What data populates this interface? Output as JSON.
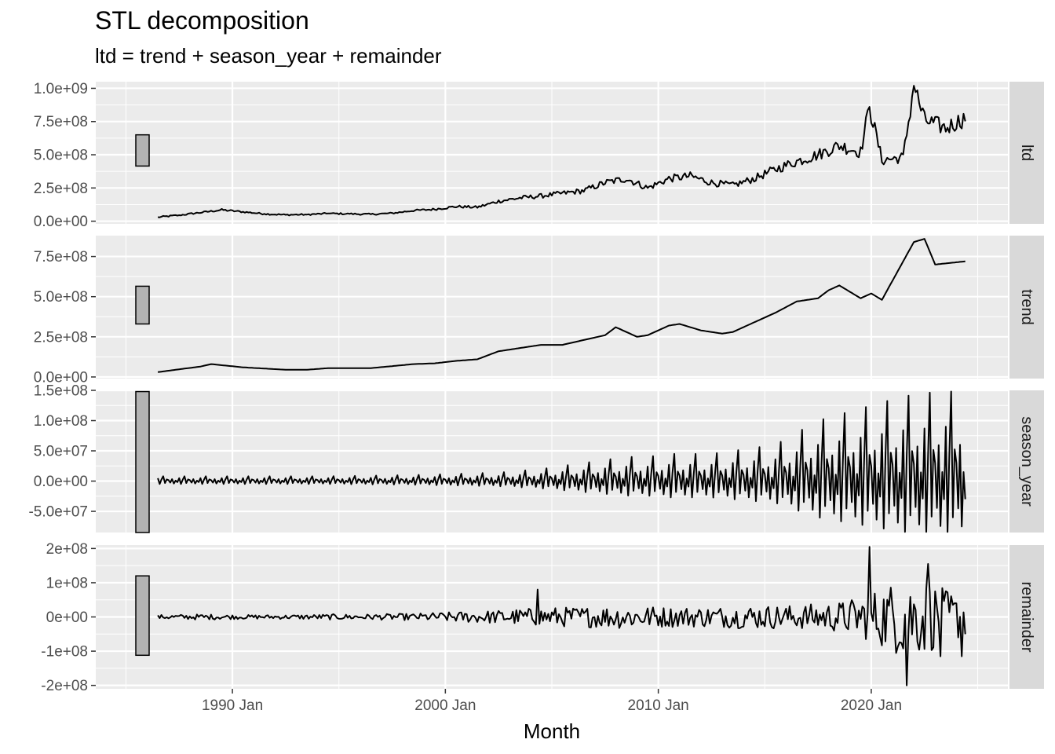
{
  "chart_data": {
    "type": "line",
    "title": "STL decomposition",
    "subtitle": "ltd = trend + season_year + remainder",
    "xlabel": "Month",
    "x_range": [
      "1983-08",
      "2026-06"
    ],
    "x_ticks": [
      {
        "value": "1990-01",
        "label": "1990 Jan"
      },
      {
        "value": "2000-01",
        "label": "2000 Jan"
      },
      {
        "value": "2010-01",
        "label": "2010 Jan"
      },
      {
        "value": "2020-01",
        "label": "2020 Jan"
      }
    ],
    "grid": true,
    "panels": [
      {
        "name": "ltd",
        "ylim": [
          -20000000,
          1050000000
        ],
        "y_ticks": [
          {
            "value": 0,
            "label": "0.0e+00"
          },
          {
            "value": 250000000,
            "label": "2.5e+08"
          },
          {
            "value": 500000000,
            "label": "5.0e+08"
          },
          {
            "value": 750000000,
            "label": "7.5e+08"
          },
          {
            "value": 1000000000,
            "label": "1.0e+09"
          }
        ],
        "scale_bar": [
          415000000,
          650000000
        ],
        "x": [
          "1986-07",
          "1987-07",
          "1988-07",
          "1989-07",
          "1990-07",
          "1991-07",
          "1992-07",
          "1993-07",
          "1994-07",
          "1995-07",
          "1996-07",
          "1997-07",
          "1998-07",
          "1999-07",
          "2000-07",
          "2001-07",
          "2002-07",
          "2003-07",
          "2004-07",
          "2005-07",
          "2006-07",
          "2007-07",
          "2008-07",
          "2009-07",
          "2010-07",
          "2011-07",
          "2012-07",
          "2013-07",
          "2014-07",
          "2015-07",
          "2016-07",
          "2017-07",
          "2018-07",
          "2019-07",
          "2019-12",
          "2020-07",
          "2021-07",
          "2022-01",
          "2022-07",
          "2023-07",
          "2024-06"
        ],
        "values": [
          30000000,
          45000000,
          65000000,
          85000000,
          70000000,
          55000000,
          48000000,
          50000000,
          58000000,
          55000000,
          52000000,
          60000000,
          80000000,
          90000000,
          110000000,
          105000000,
          150000000,
          175000000,
          190000000,
          210000000,
          230000000,
          290000000,
          320000000,
          250000000,
          320000000,
          340000000,
          290000000,
          270000000,
          320000000,
          390000000,
          450000000,
          500000000,
          570000000,
          520000000,
          860000000,
          460000000,
          480000000,
          1020000000,
          760000000,
          700000000,
          780000000
        ]
      },
      {
        "name": "trend",
        "ylim": [
          -10000000,
          880000000
        ],
        "y_ticks": [
          {
            "value": 0,
            "label": "0.0e+00"
          },
          {
            "value": 250000000,
            "label": "2.5e+08"
          },
          {
            "value": 500000000,
            "label": "5.0e+08"
          },
          {
            "value": 750000000,
            "label": "7.5e+08"
          }
        ],
        "scale_bar": [
          330000000,
          565000000
        ],
        "x": [
          "1986-07",
          "1988-07",
          "1989-01",
          "1990-07",
          "1992-07",
          "1993-07",
          "1994-07",
          "1995-07",
          "1996-07",
          "1998-07",
          "1999-07",
          "2000-07",
          "2001-07",
          "2002-07",
          "2003-07",
          "2004-07",
          "2005-07",
          "2006-07",
          "2007-07",
          "2008-01",
          "2009-01",
          "2009-07",
          "2010-07",
          "2011-01",
          "2012-01",
          "2013-01",
          "2013-07",
          "2014-07",
          "2015-07",
          "2016-07",
          "2017-07",
          "2018-01",
          "2018-07",
          "2019-07",
          "2020-01",
          "2020-07",
          "2021-07",
          "2022-01",
          "2022-07",
          "2023-01",
          "2024-06"
        ],
        "values": [
          30000000,
          65000000,
          80000000,
          60000000,
          45000000,
          45000000,
          55000000,
          55000000,
          55000000,
          80000000,
          85000000,
          100000000,
          110000000,
          160000000,
          180000000,
          200000000,
          200000000,
          230000000,
          260000000,
          310000000,
          250000000,
          260000000,
          320000000,
          330000000,
          290000000,
          270000000,
          280000000,
          340000000,
          400000000,
          470000000,
          490000000,
          540000000,
          570000000,
          490000000,
          520000000,
          480000000,
          720000000,
          840000000,
          860000000,
          700000000,
          720000000
        ]
      },
      {
        "name": "season_year",
        "ylim": [
          -85000000,
          150000000
        ],
        "y_ticks": [
          {
            "value": -50000000,
            "label": "-5.0e+07"
          },
          {
            "value": 0,
            "label": "0.0e+00"
          },
          {
            "value": 50000000,
            "label": "5.0e+07"
          },
          {
            "value": 100000000,
            "label": "1.0e+08"
          },
          {
            "value": 150000000,
            "label": "1.5e+08"
          }
        ],
        "scale_bar": [
          -85000000,
          148000000
        ],
        "x": [
          "1986-07",
          "1988-07",
          "1990-07",
          "1992-07",
          "1994-07",
          "1996-07",
          "1998-07",
          "2000-07",
          "2002-07",
          "2004-07",
          "2005-07",
          "2006-07",
          "2007-07",
          "2008-07",
          "2009-07",
          "2010-07",
          "2011-07",
          "2012-07",
          "2013-07",
          "2014-07",
          "2015-07",
          "2016-07",
          "2017-07",
          "2018-07",
          "2019-07",
          "2020-07",
          "2021-07",
          "2022-07",
          "2023-07",
          "2024-06"
        ],
        "amplitude": [
          8000000,
          8000000,
          8000000,
          8000000,
          8000000,
          9000000,
          10000000,
          12000000,
          14000000,
          20000000,
          25000000,
          30000000,
          35000000,
          40000000,
          40000000,
          45000000,
          45000000,
          45000000,
          50000000,
          55000000,
          60000000,
          80000000,
          100000000,
          110000000,
          120000000,
          130000000,
          140000000,
          145000000,
          150000000,
          150000000
        ]
      },
      {
        "name": "remainder",
        "ylim": [
          -210000000,
          210000000
        ],
        "y_ticks": [
          {
            "value": -200000000,
            "label": "-2e+08"
          },
          {
            "value": -100000000,
            "label": "-1e+08"
          },
          {
            "value": 0,
            "label": "0e+00"
          },
          {
            "value": 100000000,
            "label": "1e+08"
          },
          {
            "value": 200000000,
            "label": "2e+08"
          }
        ],
        "scale_bar": [
          -112000000,
          120000000
        ],
        "x": [
          "1986-07",
          "1988-07",
          "1990-07",
          "1992-07",
          "1994-07",
          "1996-07",
          "1998-07",
          "2000-07",
          "2002-07",
          "2004-07",
          "2006-07",
          "2008-07",
          "2010-07",
          "2012-07",
          "2014-07",
          "2016-07",
          "2018-07",
          "2019-07",
          "2020-07",
          "2021-07",
          "2022-07",
          "2023-07",
          "2024-06"
        ],
        "amplitude": [
          6000000,
          8000000,
          6000000,
          6000000,
          8000000,
          8000000,
          10000000,
          15000000,
          20000000,
          28000000,
          30000000,
          35000000,
          30000000,
          30000000,
          35000000,
          35000000,
          45000000,
          60000000,
          90000000,
          120000000,
          110000000,
          80000000,
          60000000
        ],
        "spikes": [
          {
            "x": "2004-05",
            "value": 80000000
          },
          {
            "x": "2019-12",
            "value": 205000000
          },
          {
            "x": "2021-09",
            "value": -200000000
          },
          {
            "x": "2022-09",
            "value": 155000000
          },
          {
            "x": "2023-04",
            "value": -115000000
          },
          {
            "x": "2024-04",
            "value": -115000000
          }
        ]
      }
    ]
  }
}
